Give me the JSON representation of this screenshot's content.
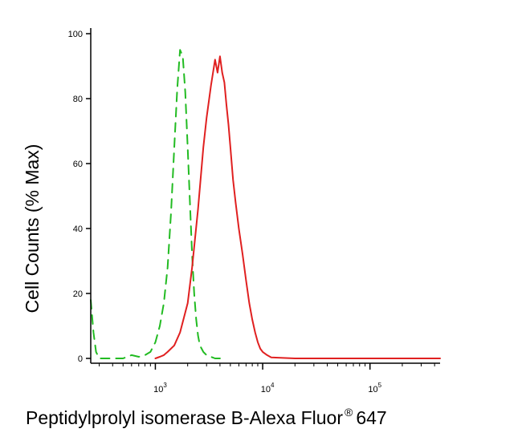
{
  "chart_data": {
    "type": "line",
    "xlabel": "Peptidylprolyl isomerase B-Alexa Fluor",
    "xlabel_superscript": "®",
    "xlabel_suffix": "647",
    "ylabel": "Cell Counts (% Max)",
    "x_scale": "log",
    "xlim": [
      250,
      450000
    ],
    "ylim": [
      0,
      100
    ],
    "y_ticks": [
      0,
      20,
      40,
      60,
      80,
      100
    ],
    "y_tick_labels": [
      "0",
      "20",
      "40",
      "60",
      "80",
      "100"
    ],
    "x_major_ticks": [
      1000,
      10000,
      100000
    ],
    "x_tick_labels": [
      {
        "base": "10",
        "exp": "3"
      },
      {
        "base": "10",
        "exp": "4"
      },
      {
        "base": "10",
        "exp": "5"
      }
    ],
    "grid": false,
    "legend": "none",
    "series": [
      {
        "color": "#22bb22",
        "dash": "dashed",
        "x": [
          250,
          265,
          280,
          300,
          350,
          500,
          600,
          700,
          800,
          900,
          1000,
          1100,
          1200,
          1300,
          1400,
          1500,
          1600,
          1700,
          1800,
          1900,
          2000,
          2100,
          2200,
          2300,
          2400,
          2500,
          2600,
          2800,
          3000,
          3300,
          3600,
          4000
        ],
        "values": [
          18,
          8,
          2,
          0,
          0,
          0,
          1,
          0.5,
          1,
          2,
          5,
          10,
          17,
          28,
          45,
          65,
          83,
          95,
          93,
          82,
          65,
          48,
          32,
          20,
          12,
          7,
          4,
          2,
          1,
          0.5,
          0,
          0
        ]
      },
      {
        "color": "#e02020",
        "dash": "solid",
        "x": [
          1000,
          1100,
          1200,
          1300,
          1500,
          1700,
          2000,
          2200,
          2500,
          2800,
          3000,
          3300,
          3600,
          3800,
          4000,
          4200,
          4400,
          4600,
          4800,
          5000,
          5300,
          5600,
          6000,
          6500,
          7000,
          7500,
          8000,
          8500,
          9000,
          9500,
          10000,
          11000,
          12000,
          20000,
          50000,
          100000,
          450000
        ],
        "values": [
          0,
          0.5,
          1,
          2,
          4,
          8,
          17,
          28,
          46,
          65,
          74,
          84,
          92,
          88,
          93,
          88,
          85,
          78,
          72,
          65,
          55,
          48,
          40,
          32,
          24,
          17,
          12,
          8,
          5,
          3,
          2,
          1,
          0.3,
          0,
          0,
          0,
          0
        ]
      }
    ]
  }
}
